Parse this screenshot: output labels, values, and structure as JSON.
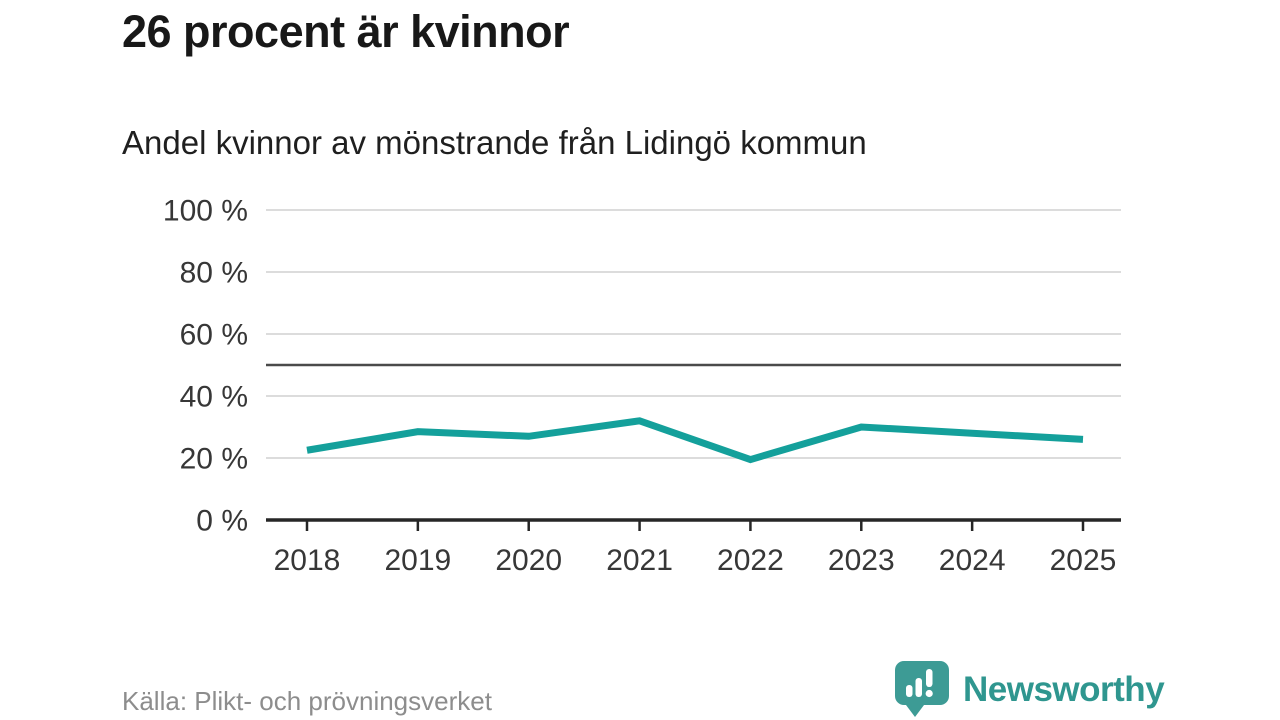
{
  "chart_data": {
    "type": "line",
    "title": "26 procent är kvinnor",
    "subtitle": "Andel kvinnor av mönstrande från Lidingö kommun",
    "x": [
      2018,
      2019,
      2020,
      2021,
      2022,
      2023,
      2024,
      2025
    ],
    "series": [
      {
        "name": "Andel kvinnor av mönstrande från Lidingö kommun",
        "values": [
          22.5,
          28.5,
          27,
          32,
          19.5,
          30,
          28,
          26
        ]
      }
    ],
    "unit": "%",
    "xlabel": "",
    "ylabel": "",
    "ylim": [
      0,
      100
    ],
    "yticks": [
      0,
      20,
      40,
      60,
      80,
      100
    ],
    "ytick_format": "{v} %",
    "reference_line": 50,
    "grid": true,
    "legend": "none",
    "colors": {
      "line": "#14a09b",
      "grid": "#dcdcdc",
      "reference": "#4a4a4a",
      "axis": "#262626",
      "labels": "#373737"
    }
  },
  "footer": {
    "source": "Källa: Plikt- och prövningsverket",
    "brand_name": "Newsworthy",
    "brand_color": "#2f968f"
  }
}
